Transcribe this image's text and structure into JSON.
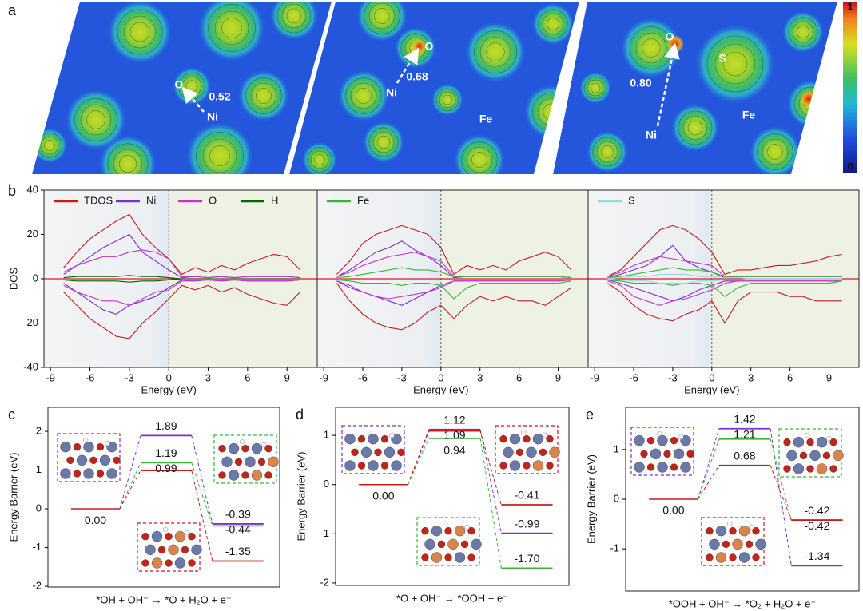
{
  "panel_a": {
    "panel": "a",
    "maps": [
      {
        "labels": [
          "O",
          "0.52",
          "Ni"
        ]
      },
      {
        "labels": [
          "O",
          "0.68",
          "Ni",
          "Fe"
        ]
      },
      {
        "labels": [
          "O",
          "S",
          "0.80",
          "Ni",
          "Fe"
        ]
      }
    ],
    "colorbar": {
      "max": "1",
      "min": "0"
    }
  },
  "chart_data": [
    {
      "type": "line",
      "panel": "b",
      "y_label": "DOS",
      "x_label": "Energy (eV)",
      "xlim": [
        -9.5,
        11.3
      ],
      "xticks": [
        -9,
        -6,
        -3,
        0,
        3,
        6,
        9
      ],
      "ylim": [
        -40,
        40
      ],
      "yticks": [
        -40,
        -20,
        0,
        20,
        40
      ],
      "x": [
        -8,
        -7,
        -6,
        -5,
        -4,
        -3,
        -2,
        -1,
        0,
        1,
        2,
        3,
        4,
        5,
        6,
        7,
        8,
        9,
        10
      ],
      "series": [
        {
          "name": "TDOS",
          "color": "#c8191e",
          "values": [
            5,
            12,
            18,
            22,
            26,
            29,
            20,
            14,
            9,
            2,
            5,
            3,
            6,
            4,
            7,
            9,
            11,
            10,
            4
          ],
          "values_down": [
            -6,
            -12,
            -18,
            -22,
            -26,
            -27,
            -20,
            -15,
            -9,
            -3,
            -5,
            -3,
            -6,
            -4,
            -7,
            -9,
            -11,
            -12,
            -6
          ]
        },
        {
          "name": "Ni",
          "color": "#7a2fd0",
          "values": [
            2,
            6,
            10,
            14,
            17,
            20,
            12,
            8,
            4,
            0.5,
            1,
            0.5,
            1,
            0.5,
            1,
            1,
            1,
            1,
            0.5
          ],
          "values_down": [
            -2,
            -6,
            -10,
            -14,
            -16,
            -12,
            -10,
            -8,
            -4,
            -0.5,
            -1,
            -0.5,
            -1,
            -0.5,
            -1,
            -1,
            -1,
            -1,
            -0.5
          ]
        },
        {
          "name": "O",
          "color": "#c832c8",
          "values": [
            3,
            6,
            8,
            10,
            10,
            12,
            13,
            12,
            9,
            1,
            1,
            0.5,
            1,
            0.5,
            1,
            1,
            1,
            1,
            0.5
          ],
          "values_down": [
            -3,
            -6,
            -8,
            -10,
            -10,
            -12,
            -9,
            -6,
            -5,
            -1,
            -1,
            -0.5,
            -1,
            -0.5,
            -1,
            -1,
            -1,
            -1,
            -0.5
          ]
        },
        {
          "name": "H",
          "color": "#006400",
          "values": [
            0.5,
            1,
            1,
            1,
            1,
            1.5,
            1,
            1,
            0.5,
            0,
            0,
            0,
            0,
            0,
            0,
            0,
            0,
            0,
            0
          ],
          "values_down": [
            -0.5,
            -1,
            -1,
            -1,
            -1,
            -1.5,
            -1,
            -1,
            -0.5,
            0,
            0,
            0,
            0,
            0,
            0,
            0,
            0,
            0,
            0
          ]
        }
      ]
    },
    {
      "type": "line",
      "x_label": "Energy (eV)",
      "xlim": [
        -9.5,
        11.3
      ],
      "xticks": [
        -9,
        -6,
        -3,
        0,
        3,
        6,
        9
      ],
      "ylim": [
        -40,
        40
      ],
      "x": [
        -8,
        -7,
        -6,
        -5,
        -4,
        -3,
        -2,
        -1,
        0,
        1,
        2,
        3,
        4,
        5,
        6,
        7,
        8,
        9,
        10
      ],
      "series": [
        {
          "color": "#c8191e",
          "values": [
            2,
            8,
            16,
            20,
            22,
            24,
            22,
            20,
            14,
            2,
            6,
            4,
            6,
            4,
            8,
            10,
            12,
            10,
            4
          ],
          "values_down": [
            -2,
            -10,
            -16,
            -20,
            -22,
            -23,
            -20,
            -15,
            -12,
            -18,
            -12,
            -8,
            -10,
            -8,
            -10,
            -10,
            -12,
            -8,
            -4
          ]
        },
        {
          "color": "#7a2fd0",
          "values": [
            1,
            4,
            8,
            12,
            14,
            17,
            13,
            10,
            6,
            0.5,
            1,
            1,
            1,
            1,
            1,
            1,
            1,
            1,
            0.5
          ],
          "values_down": [
            -1,
            -4,
            -6,
            -8,
            -10,
            -12,
            -9,
            -6,
            -3,
            -1,
            -1,
            -1,
            -1,
            -1,
            -1,
            -1,
            -1,
            -1,
            -0.5
          ]
        },
        {
          "color": "#c832c8",
          "values": [
            1,
            3,
            6,
            8,
            10,
            11,
            12,
            10,
            8,
            1,
            1,
            1,
            1,
            1,
            1,
            1,
            1,
            1,
            0.5
          ],
          "values_down": [
            -1,
            -3,
            -6,
            -8,
            -9,
            -8,
            -7,
            -6,
            -4,
            -1,
            -1,
            -1,
            -1,
            -1,
            -1,
            -1,
            -1,
            -1,
            -0.5
          ]
        },
        {
          "name": "Fe",
          "color": "#39b53a",
          "values": [
            0.5,
            1,
            2,
            3,
            4,
            5,
            4,
            4,
            3,
            1,
            1,
            1,
            1,
            1,
            1,
            1,
            1,
            1,
            0.5
          ],
          "values_down": [
            -0.5,
            -1,
            -2,
            -2,
            -2,
            -3,
            -2,
            -2,
            -3,
            -9,
            -4,
            -2,
            -2,
            -2,
            -2,
            -2,
            -2,
            -2,
            -1
          ]
        }
      ]
    },
    {
      "type": "line",
      "x_label": "Energy (eV)",
      "xlim": [
        -9.5,
        11.3
      ],
      "xticks": [
        -9,
        -6,
        -3,
        0,
        3,
        6,
        9
      ],
      "ylim": [
        -40,
        40
      ],
      "x": [
        -8,
        -7,
        -6,
        -5,
        -4,
        -3,
        -2,
        -1,
        0,
        1,
        2,
        3,
        4,
        5,
        6,
        7,
        8,
        9,
        10
      ],
      "series": [
        {
          "color": "#c8191e",
          "values": [
            1,
            4,
            10,
            16,
            22,
            24,
            22,
            18,
            12,
            2,
            4,
            4,
            5,
            6,
            6,
            7,
            8,
            10,
            11
          ],
          "values_down": [
            -2,
            -6,
            -12,
            -16,
            -18,
            -19,
            -16,
            -14,
            -10,
            -20,
            -10,
            -6,
            -6,
            -6,
            -8,
            -8,
            -10,
            -10,
            -10
          ]
        },
        {
          "color": "#7a2fd0",
          "values": [
            0.5,
            2,
            4,
            6,
            10,
            15,
            8,
            5,
            3,
            0.5,
            1,
            1,
            1,
            1,
            1,
            1,
            1,
            1,
            1
          ],
          "values_down": [
            -0.5,
            -2,
            -4,
            -6,
            -8,
            -10,
            -8,
            -5,
            -3,
            -1,
            -1,
            -1,
            -1,
            -1,
            -1,
            -1,
            -1,
            -1,
            -1
          ]
        },
        {
          "color": "#c832c8",
          "values": [
            1,
            3,
            6,
            8,
            10,
            9,
            8,
            7,
            6,
            1,
            1,
            1,
            1,
            1,
            1,
            1,
            1,
            1,
            1
          ],
          "values_down": [
            -1,
            -3,
            -8,
            -10,
            -12,
            -10,
            -9,
            -7,
            -5,
            -2,
            -1,
            -1,
            -1,
            -1,
            -1,
            -1,
            -1,
            -1,
            -1
          ]
        },
        {
          "color": "#39b53a",
          "values": [
            0.5,
            1,
            2,
            3,
            4,
            5,
            4,
            4,
            3,
            1,
            1,
            1,
            1,
            1,
            1,
            1,
            1,
            1,
            1
          ],
          "values_down": [
            -0.5,
            -1,
            -2,
            -2,
            -2,
            -3,
            -2,
            -2,
            -3,
            -8,
            -4,
            -2,
            -2,
            -2,
            -2,
            -2,
            -2,
            -2,
            -1
          ]
        },
        {
          "name": "S",
          "color": "#9ad8dc",
          "values": [
            0,
            0.5,
            1,
            1,
            2,
            2,
            2,
            1,
            1,
            0.5,
            0.5,
            0,
            0,
            0,
            0,
            0,
            0,
            0,
            0
          ],
          "values_down": [
            0,
            -0.5,
            -1,
            -1,
            -2,
            -2,
            -2,
            -1,
            -1,
            -0.5,
            -0.5,
            0,
            0,
            0,
            0,
            0,
            0,
            0,
            0
          ]
        }
      ]
    },
    {
      "type": "energy_levels",
      "panel": "c",
      "y_label": "Energy Barrier (eV)",
      "x_label": "*OH + OH⁻ → *O + H₂O + e⁻",
      "ylim": [
        -2.02,
        2.62
      ],
      "yticks": [
        -2,
        -1,
        0,
        1,
        2
      ],
      "start": {
        "value": 0,
        "label": "0.00",
        "color": "#c8191e"
      },
      "series": [
        {
          "color": "#7a2fd0",
          "values": [
            1.89,
            -0.39
          ],
          "value_labels": [
            "1.89",
            "-0.39"
          ]
        },
        {
          "color": "#39b53a",
          "values": [
            1.19,
            -0.44
          ],
          "value_labels": [
            "1.19",
            "-0.44"
          ]
        },
        {
          "color": "#c8191e",
          "values": [
            0.99,
            -1.35
          ],
          "value_labels": [
            "0.99",
            "-1.35"
          ]
        }
      ]
    },
    {
      "type": "energy_levels",
      "panel": "d",
      "y_label": "Energy Barrier (eV)",
      "x_label": "*O + OH⁻ → *OOH + e⁻",
      "ylim": [
        -2.05,
        1.57
      ],
      "yticks": [
        -2,
        -1,
        0,
        1
      ],
      "start": {
        "value": 0,
        "label": "0.00",
        "color": "#c8191e"
      },
      "series": [
        {
          "color": "#7a2fd0",
          "values": [
            1.12,
            -0.99
          ],
          "value_labels": [
            "1.12",
            "-0.99"
          ]
        },
        {
          "color": "#c8191e",
          "values": [
            1.09,
            -0.41
          ],
          "value_labels": [
            "1.09",
            "-0.41"
          ]
        },
        {
          "color": "#39b53a",
          "values": [
            0.94,
            -1.7
          ],
          "value_labels": [
            "0.94",
            "-1.70"
          ]
        }
      ]
    },
    {
      "type": "energy_levels",
      "panel": "e",
      "y_label": "Energy Barrier (eV)",
      "x_label": "*OOH + OH⁻ → *O₂ + H₂O + e⁻",
      "ylim": [
        -1.85,
        1.85
      ],
      "yticks": [
        -1,
        0,
        1
      ],
      "start": {
        "value": 0,
        "label": "0.00",
        "color": "#c8191e"
      },
      "series": [
        {
          "color": "#7a2fd0",
          "values": [
            1.42,
            -1.34
          ],
          "value_labels": [
            "1.42",
            "-1.34"
          ]
        },
        {
          "color": "#39b53a",
          "values": [
            1.21,
            -0.42
          ],
          "value_labels": [
            "1.21",
            "-0.42"
          ]
        },
        {
          "color": "#c8191e",
          "values": [
            0.68,
            -0.42
          ],
          "value_labels": [
            "0.68",
            "-0.42"
          ]
        }
      ]
    }
  ]
}
